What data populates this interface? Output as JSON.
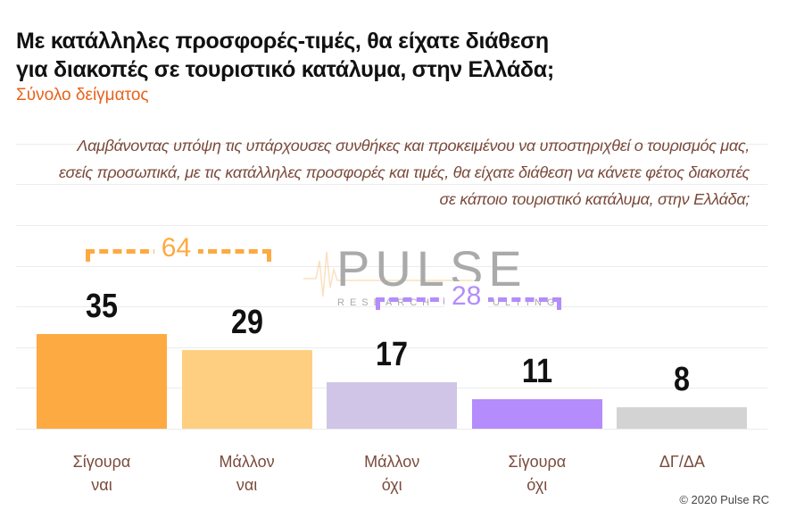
{
  "title_line1": "Με κατάλληλες προσφορές-τιμές, θα είχατε διάθεση",
  "title_line2": "για διακοπές σε τουριστικό κατάλυμα, στην Ελλάδα;",
  "subtitle": "Σύνολο δείγματος",
  "question": "Λαμβάνοντας υπόψη τις υπάρχουσες συνθήκες και προκειμένου να υποστηριχθεί ο τουρισμός μας, εσείς προσωπικά, με τις κατάλληλες προσφορές και τιμές, θα είχατε διάθεση να κάνετε φέτος διακοπές σε κάποιο τουριστικό κατάλυμα, στην Ελλάδα;",
  "logo": {
    "name": "PULSE",
    "sub": "RESEARCH  CONSULTING"
  },
  "copyright": "© 2020 Pulse RC",
  "chart_data": {
    "type": "bar",
    "categories": [
      [
        "Σίγουρα",
        "ναι"
      ],
      [
        "Μάλλον",
        "ναι"
      ],
      [
        "Μάλλον",
        "όχι"
      ],
      [
        "Σίγουρα",
        "όχι"
      ],
      [
        "ΔΓ/ΔΑ",
        ""
      ]
    ],
    "values": [
      35,
      29,
      17,
      11,
      8
    ],
    "colors": [
      "#fdaa42",
      "#fecf80",
      "#d0c5e6",
      "#b48cfb",
      "#d3d3d3"
    ],
    "ylim": [
      0,
      70
    ],
    "grid": true,
    "groups": [
      {
        "label": "64",
        "from": 0,
        "to": 1,
        "color": "#fdaa42"
      },
      {
        "label": "28",
        "from": 2,
        "to": 3,
        "color": "#b48cfb"
      }
    ]
  }
}
